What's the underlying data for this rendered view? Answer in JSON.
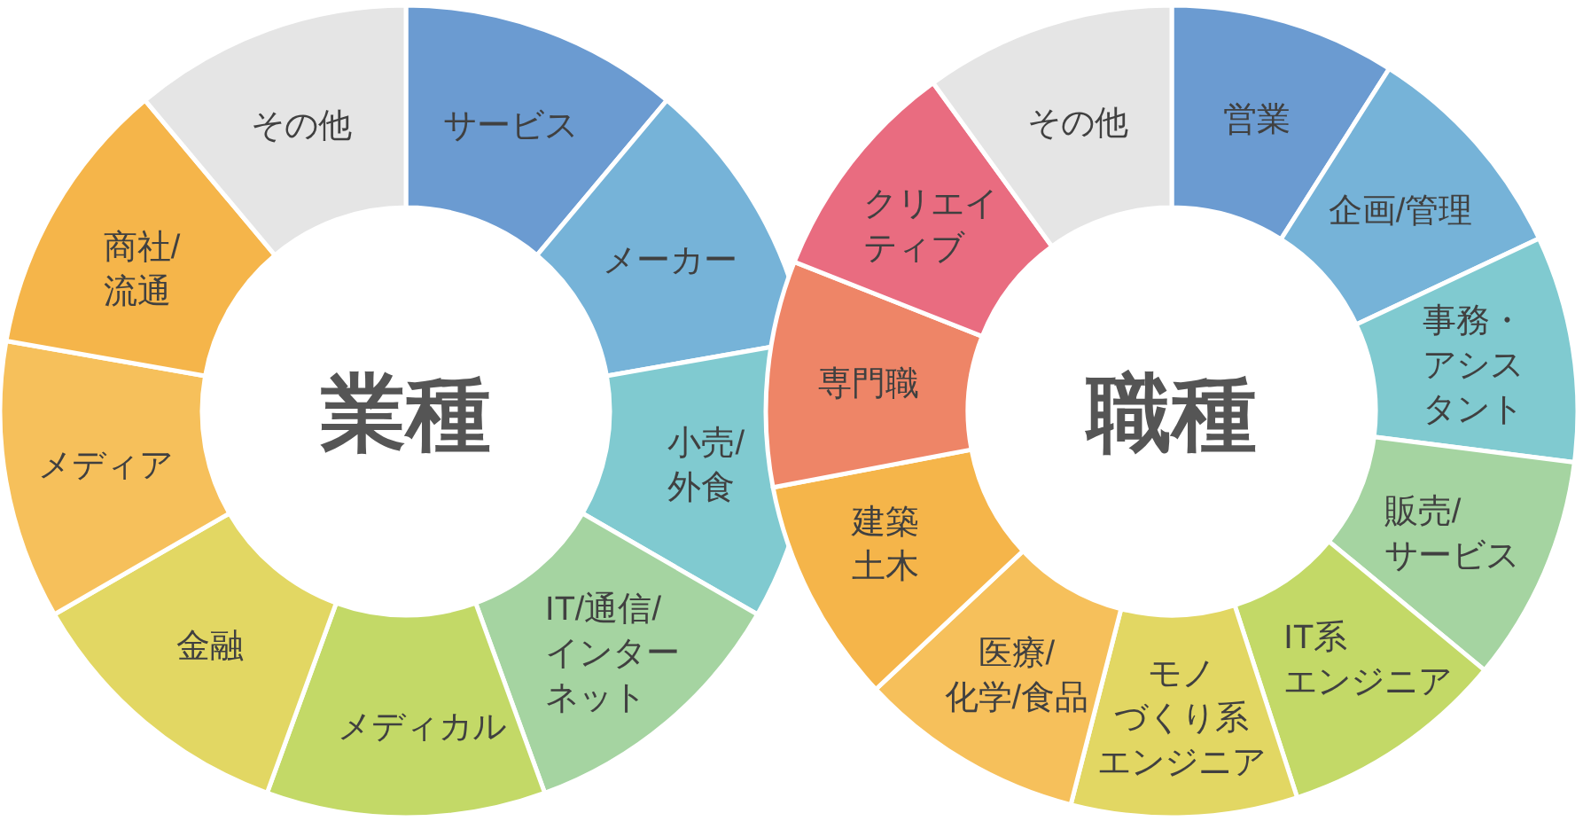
{
  "chart_data": [
    {
      "type": "donut",
      "title": "業種",
      "categories": [
        "サービス",
        "メーカー",
        "小売/外食",
        "IT/通信/インターネット",
        "メディカル",
        "金融",
        "メディア",
        "商社/流通",
        "その他"
      ],
      "values": [
        11.1,
        11.1,
        11.1,
        11.1,
        11.1,
        11.1,
        11.1,
        11.1,
        11.1
      ],
      "colors": [
        "#6b9bd1",
        "#76b3d8",
        "#80cad0",
        "#a5d4a1",
        "#c3d967",
        "#e2d763",
        "#f6c05b",
        "#f5b54a",
        "#e5e5e5"
      ]
    },
    {
      "type": "donut",
      "title": "職種",
      "categories": [
        "営業",
        "企画/管理",
        "事務・アシスタント",
        "販売/サービス",
        "IT系エンジニア",
        "モノづくり系エンジニア",
        "医療/化学/食品",
        "建築土木",
        "専門職",
        "クリエイティブ",
        "その他"
      ],
      "values": [
        9,
        9,
        9,
        9,
        9,
        9,
        9,
        9,
        9,
        9,
        10
      ],
      "colors": [
        "#6b9bd1",
        "#76b3d8",
        "#80cad0",
        "#a5d4a1",
        "#c3d967",
        "#e2d763",
        "#f6c05b",
        "#f5b54a",
        "#ee8567",
        "#e96c80",
        "#e5e5e5"
      ]
    }
  ]
}
